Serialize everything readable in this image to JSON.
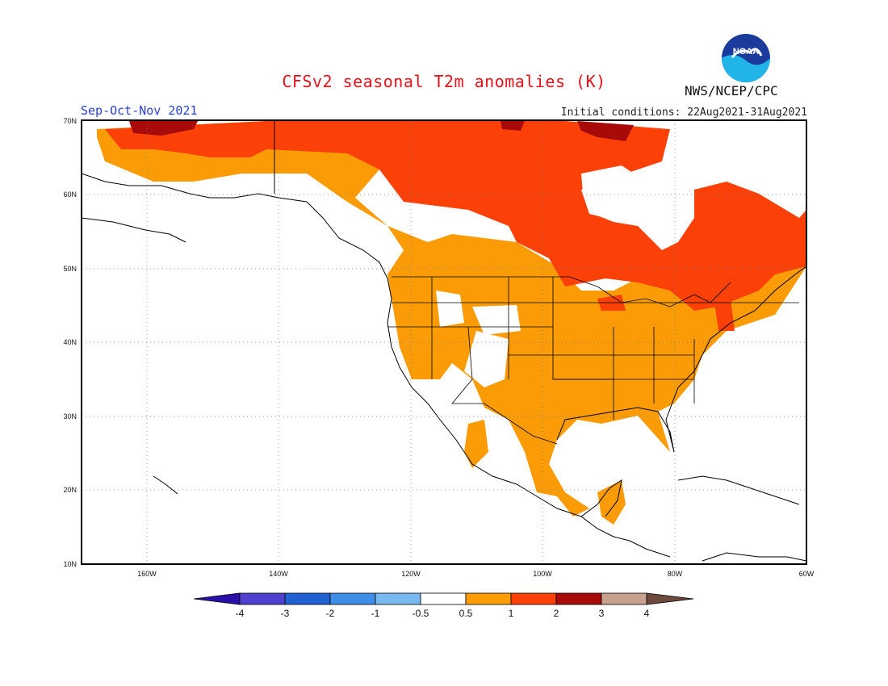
{
  "title": "CFSv2 seasonal T2m anomalies (K)",
  "period": "Sep-Oct-Nov 2021",
  "initial_conditions": "Initial conditions: 22Aug2021-31Aug2021",
  "agency": "NWS/NCEP/CPC",
  "logo_text": "NOAA",
  "latitude_labels": [
    "70N",
    "60N",
    "50N",
    "40N",
    "30N",
    "20N",
    "10N"
  ],
  "longitude_labels": [
    "160W",
    "140W",
    "120W",
    "100W",
    "80W",
    "60W"
  ],
  "colorbar": {
    "labels": [
      "-4",
      "-3",
      "-2",
      "-1",
      "-0.5",
      "0.5",
      "1",
      "2",
      "3",
      "4"
    ],
    "colors": [
      "#2b0fa8",
      "#5040d0",
      "#2060d0",
      "#3e8ee8",
      "#7ab8f0",
      "#ffffff",
      "#fb9c06",
      "#fb4008",
      "#a80a0a",
      "#c8a090",
      "#6e4a3c"
    ]
  },
  "colors": {
    "title": "#e8101a",
    "period": "#2a3fd6",
    "anomaly_0.5_1": "#fb9c06",
    "anomaly_1_2": "#fb4008",
    "anomaly_2_3": "#a80a0a"
  }
}
